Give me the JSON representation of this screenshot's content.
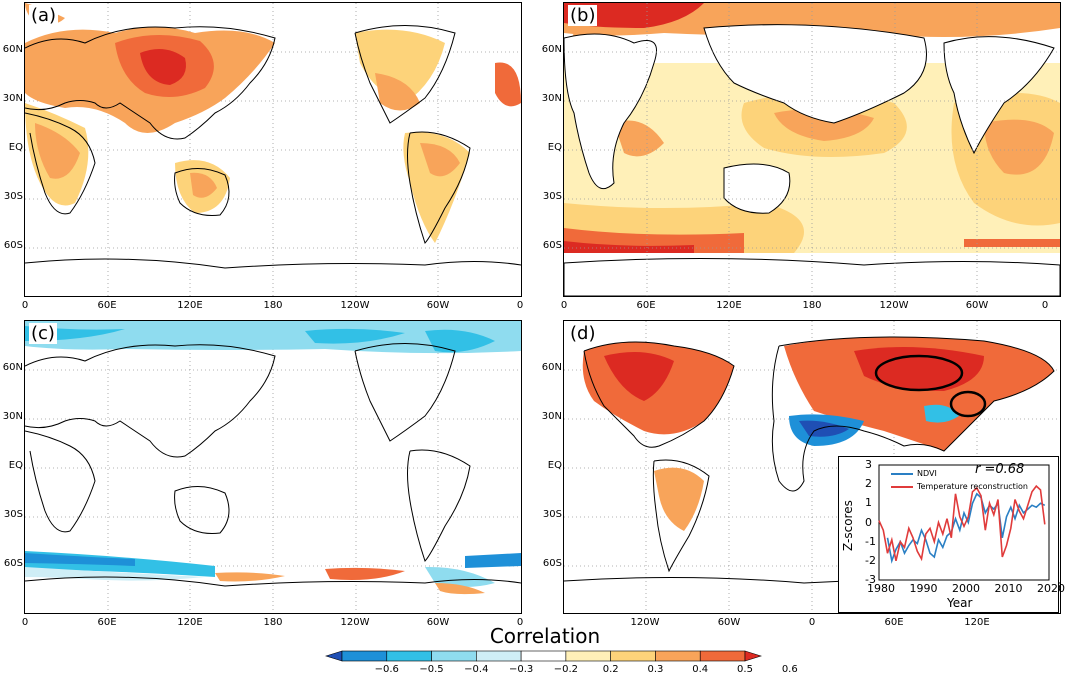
{
  "panels": {
    "a": {
      "label": "(a)",
      "xticks": [
        "0",
        "60E",
        "120E",
        "180",
        "120W",
        "60W",
        "0"
      ],
      "yticks": [
        "60N",
        "30N",
        "EQ",
        "30S",
        "60S"
      ]
    },
    "b": {
      "label": "(b)",
      "xticks": [
        "0",
        "60E",
        "120E",
        "180",
        "120W",
        "60W",
        "0"
      ],
      "yticks": [
        "60N",
        "30N",
        "EQ",
        "30S",
        "60S"
      ]
    },
    "c": {
      "label": "(c)",
      "xticks": [
        "0",
        "60E",
        "120E",
        "180",
        "120W",
        "60W",
        "0"
      ],
      "yticks": [
        "60N",
        "30N",
        "EQ",
        "30S",
        "60S"
      ]
    },
    "d": {
      "label": "(d)",
      "xticks": [
        "120W",
        "60W",
        "0",
        "60E",
        "120E"
      ],
      "yticks": [
        "60N",
        "30N",
        "EQ",
        "30S",
        "60S"
      ]
    }
  },
  "colorbar": {
    "title": "Correlation",
    "ticks": [
      "−0.6",
      "−0.5",
      "−0.4",
      "−0.3",
      "−0.2",
      "0.2",
      "0.3",
      "0.4",
      "0.5",
      "0.6"
    ],
    "colors": [
      "#1f4fb4",
      "#1e90d8",
      "#32c0e6",
      "#8fdcef",
      "#cfeef6",
      "#ffffff",
      "#fff0b8",
      "#fdd37a",
      "#f8a45a",
      "#f06a3a",
      "#dc2a22"
    ]
  },
  "chart_data": {
    "type": "line",
    "title": "",
    "xlabel": "Year",
    "ylabel": "Z-scores",
    "xlim": [
      1980,
      2020
    ],
    "ylim": [
      -3,
      3
    ],
    "xticks": [
      "1980",
      "1990",
      "2000",
      "2010",
      "2020"
    ],
    "yticks": [
      "3",
      "2",
      "1",
      "0",
      "-1",
      "-2",
      "-3"
    ],
    "annotation": "r =0.68",
    "series": [
      {
        "name": "NDVI",
        "color": "#2a7fc4",
        "x": [
          1982,
          1983,
          1984,
          1985,
          1986,
          1987,
          1988,
          1989,
          1990,
          1991,
          1992,
          1993,
          1994,
          1995,
          1996,
          1997,
          1998,
          1999,
          2000,
          2001,
          2002,
          2003,
          2004,
          2005,
          2006,
          2007,
          2008,
          2009,
          2010,
          2011,
          2012,
          2013,
          2014,
          2015,
          2016,
          2017,
          2018,
          2019
        ],
        "values": [
          -0.8,
          -2.0,
          -1.4,
          -1.0,
          -1.6,
          -1.2,
          -0.9,
          -1.1,
          -0.4,
          -0.9,
          -1.6,
          -1.8,
          -0.9,
          -1.3,
          -0.7,
          -0.5,
          0.2,
          -0.4,
          0.5,
          0.0,
          1.0,
          1.5,
          1.3,
          0.5,
          0.9,
          0.7,
          1.0,
          -0.8,
          0.3,
          0.8,
          0.2,
          0.9,
          0.5,
          0.7,
          0.9,
          0.8,
          1.0,
          0.9
        ]
      },
      {
        "name": "Temperature reconstruction",
        "color": "#e03b3b",
        "x": [
          1980,
          1981,
          1982,
          1983,
          1984,
          1985,
          1986,
          1987,
          1988,
          1989,
          1990,
          1991,
          1992,
          1993,
          1994,
          1995,
          1996,
          1997,
          1998,
          1999,
          2000,
          2001,
          2002,
          2003,
          2004,
          2005,
          2006,
          2007,
          2008,
          2009,
          2010,
          2011,
          2012,
          2013,
          2014,
          2015,
          2016,
          2017,
          2018,
          2019
        ],
        "values": [
          0.1,
          -0.4,
          -1.6,
          -0.9,
          -2.0,
          -1.0,
          -1.3,
          -0.3,
          -0.8,
          -1.5,
          -1.9,
          -0.6,
          -0.3,
          -1.0,
          0.0,
          -0.6,
          0.2,
          -0.8,
          1.5,
          0.3,
          -0.2,
          0.3,
          1.6,
          1.8,
          1.4,
          -0.4,
          1.0,
          0.4,
          1.2,
          -1.8,
          -1.2,
          -0.3,
          1.2,
          0.6,
          0.2,
          0.9,
          1.6,
          1.9,
          1.7,
          -0.1
        ]
      }
    ]
  }
}
